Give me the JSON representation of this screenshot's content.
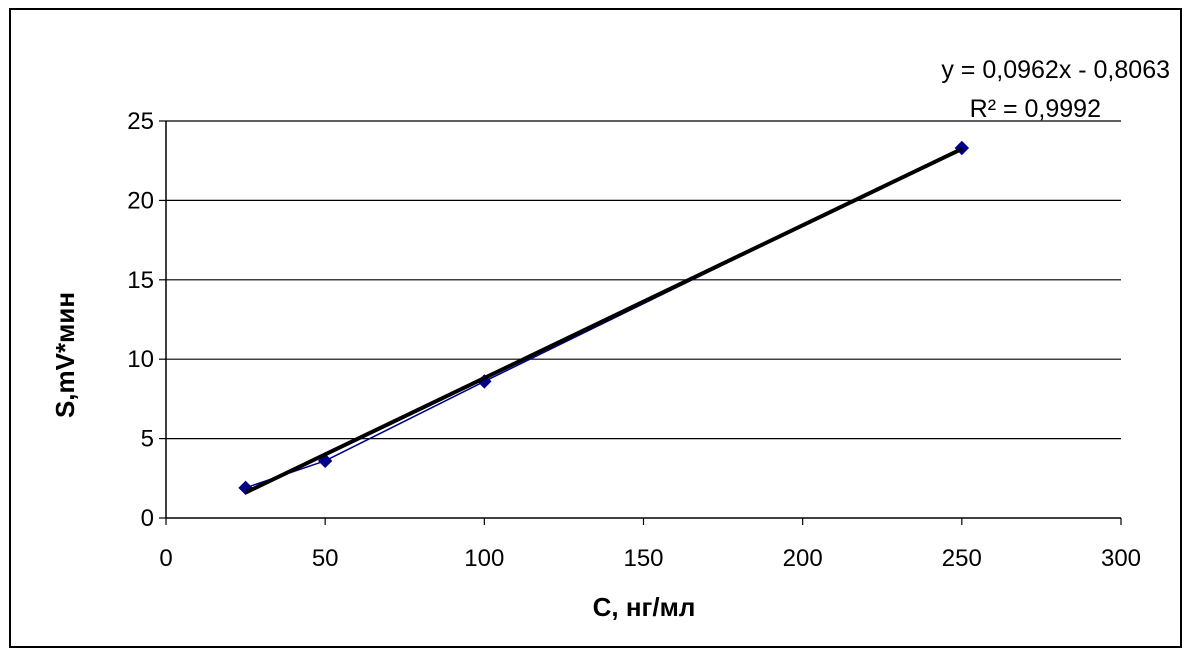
{
  "chart_data": {
    "type": "scatter",
    "xlabel": "С, нг/мл",
    "ylabel": "S,mV*мин",
    "xlim": [
      0,
      300
    ],
    "ylim": [
      0,
      25
    ],
    "x_ticks": [
      "0",
      "50",
      "100",
      "150",
      "200",
      "250",
      "300"
    ],
    "y_ticks": [
      "0",
      "5",
      "10",
      "15",
      "20",
      "25"
    ],
    "grid": "horizontal",
    "series": [
      {
        "x": [
          25,
          50,
          100,
          250
        ],
        "y": [
          1.9,
          3.6,
          8.6,
          23.3
        ],
        "color": "#00008b"
      }
    ],
    "trendline": {
      "slope": 0.0962,
      "intercept": -0.8063,
      "x_range": [
        25,
        250
      ],
      "color": "#000000"
    },
    "annotations": {
      "equation": "y = 0,0962x - 0,8063",
      "r_squared": "R² = 0,9992"
    }
  }
}
